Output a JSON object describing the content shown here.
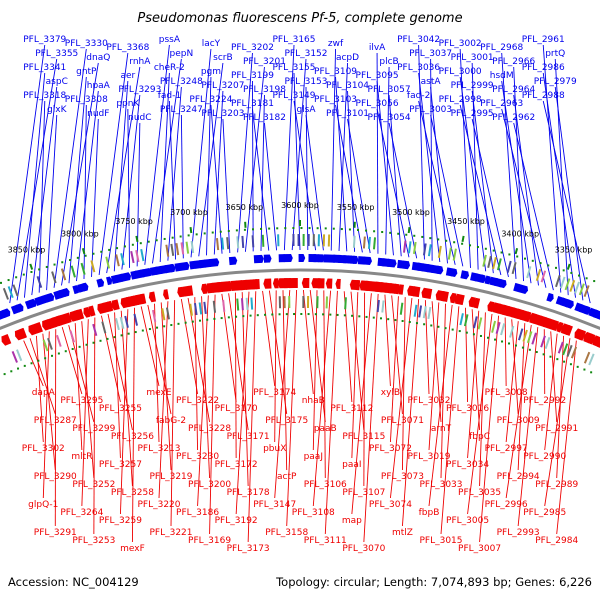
{
  "title": "Pseudomonas fluorescens Pf-5, complete genome",
  "accession": "Accession: NC_004129",
  "summary": "Topology: circular; Length: 7,074,893 bp; Genes: 6,226",
  "colors": {
    "forward": "#0000ee",
    "reverse": "#ee0000",
    "backbone": "#888888",
    "tick": "#118811"
  },
  "ticks": [
    "3850 kbp",
    "3800 kbp",
    "3750 kbp",
    "3700 kbp",
    "3650 kbp",
    "3600 kbp",
    "3550 kbp",
    "3500 kbp",
    "3450 kbp",
    "3400 kbp",
    "3350 kbp"
  ],
  "forward_labels": [
    "PFL_3379",
    "PFL_3355",
    "PFL_3341",
    "aspC",
    "PFL_3318",
    "glxK",
    "PFL_3330",
    "dnaQ",
    "gntP",
    "hpaA",
    "PFL_3308",
    "nudF",
    "PFL_3368",
    "rnhA",
    "aer",
    "PFL_3293",
    "ppnK",
    "nudC",
    "pssA",
    "pepN",
    "cheR-2",
    "PFL_3248",
    "fad-1",
    "PFL_3247",
    "lacY",
    "scrB",
    "pgm",
    "PFL_3207",
    "PFL_3224",
    "PFL_3203",
    "PFL_3202",
    "PFL_3201",
    "PFL_3199",
    "PFL_3198",
    "PFL_3181",
    "PFL_3182",
    "PFL_3165",
    "PFL_3152",
    "PFL_3155",
    "PFL_3153",
    "PFL_3149",
    "glsA",
    "zwf",
    "acpD",
    "PFL_3109",
    "PFL_3104",
    "PFL_3103",
    "PFL_3101",
    "ilvA",
    "plcB",
    "PFL_3095",
    "PFL_3057",
    "PFL_3056",
    "PFL_3054",
    "PFL_3042",
    "PFL_3037",
    "PFL_3036",
    "astA",
    "fad-2",
    "PFL_3003",
    "PFL_3002",
    "PFL_3001",
    "PFL_3000",
    "PFL_2999",
    "PFL_2998",
    "PFL_2995",
    "PFL_2968",
    "PFL_2966",
    "hsdM",
    "PFL_2964",
    "PFL_2963",
    "PFL_2962",
    "PFL_2961",
    "prtQ",
    "PFL_2986",
    "PFL_2979",
    "PFL_2988"
  ],
  "reverse_labels": [
    "dapA",
    "PFL_3287",
    "PFL_3302",
    "PFL_3290",
    "glpQ-1",
    "PFL_3291",
    "PFL_3295",
    "PFL_3299",
    "mltR",
    "PFL_3252",
    "PFL_3264",
    "PFL_3253",
    "PFL_3255",
    "PFL_3256",
    "PFL_3257",
    "PFL_3258",
    "PFL_3259",
    "mexF",
    "mexE",
    "fabG-2",
    "PFL_3213",
    "PFL_3219",
    "PFL_3220",
    "PFL_3221",
    "PFL_3222",
    "PFL_3228",
    "PFL_3230",
    "PFL_3200",
    "PFL_3186",
    "PFL_3169",
    "PFL_3170",
    "PFL_3171",
    "PFL_3172",
    "PFL_3178",
    "PFL_3192",
    "PFL_3173",
    "PFL_3174",
    "PFL_3175",
    "pbuX",
    "actP",
    "PFL_3147",
    "PFL_3158",
    "nhaB",
    "paaB",
    "paaJ",
    "PFL_3106",
    "PFL_3108",
    "PFL_3111",
    "PFL_3112",
    "PFL_3115",
    "paaI",
    "PFL_3107",
    "map",
    "PFL_3070",
    "xylB",
    "PFL_3071",
    "PFL_3072",
    "PFL_3073",
    "PFL_3074",
    "mtlZ",
    "PFL_3032",
    "arnT",
    "PFL_3019",
    "PFL_3033",
    "fbpB",
    "PFL_3015",
    "PFL_3016",
    "fbpC",
    "PFL_3034",
    "PFL_3035",
    "PFL_3005",
    "PFL_3007",
    "PFL_3008",
    "PFL_3009",
    "PFL_2997",
    "PFL_2994",
    "PFL_2996",
    "PFL_2993",
    "PFL_2992",
    "PFL_2991",
    "PFL_2990",
    "PFL_2989",
    "PFL_2985",
    "PFL_2984"
  ]
}
